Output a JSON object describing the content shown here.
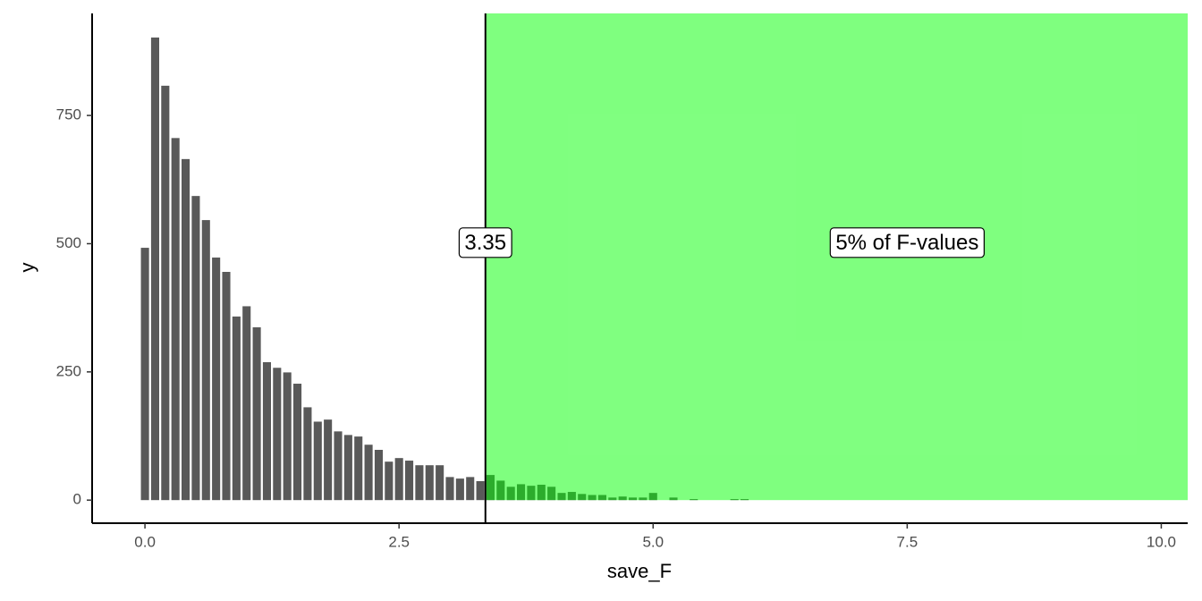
{
  "chart_data": {
    "type": "bar",
    "x": [
      0.0,
      0.1,
      0.2,
      0.3,
      0.4,
      0.5,
      0.6,
      0.7,
      0.8,
      0.9,
      1.0,
      1.1,
      1.2,
      1.3,
      1.4,
      1.5,
      1.6,
      1.7,
      1.8,
      1.9,
      2.0,
      2.1,
      2.2,
      2.3,
      2.4,
      2.5,
      2.6,
      2.7,
      2.8,
      2.9,
      3.0,
      3.1,
      3.2,
      3.3,
      3.4,
      3.5,
      3.6,
      3.7,
      3.8,
      3.9,
      4.0,
      4.1,
      4.2,
      4.3,
      4.4,
      4.5,
      4.6,
      4.7,
      4.8,
      4.9,
      5.0,
      5.1,
      5.2,
      5.3,
      5.4,
      5.5,
      5.6,
      5.7,
      5.8,
      5.9
    ],
    "values": [
      492,
      902,
      808,
      706,
      665,
      593,
      546,
      473,
      445,
      358,
      378,
      337,
      269,
      258,
      249,
      227,
      181,
      153,
      157,
      134,
      127,
      124,
      108,
      98,
      75,
      82,
      77,
      68,
      68,
      68,
      45,
      42,
      45,
      37,
      49,
      38,
      26,
      31,
      28,
      30,
      26,
      14,
      16,
      12,
      10,
      10,
      5,
      7,
      5,
      5,
      14,
      0,
      5,
      0,
      2,
      0,
      0,
      0,
      2,
      2
    ],
    "color": "#595959",
    "x_label": "save_F",
    "y_label": "y",
    "xlim": [
      -0.52,
      10.26
    ],
    "ylim": [
      -45,
      949
    ],
    "xticks": [
      {
        "value": 0,
        "label": "0.0"
      },
      2.5,
      {
        "value": 5,
        "label": "5.0"
      },
      7.5,
      {
        "value": 10,
        "label": "10.0"
      }
    ],
    "yticks": [
      0,
      250,
      500,
      750
    ],
    "grid": false,
    "vline": 3.35,
    "shade": {
      "xmin": 3.35,
      "xmax": 10.26,
      "ymin": 0,
      "ymax": 949,
      "color": "#00ff00",
      "opacity": 0.5
    },
    "annotations": [
      {
        "text": "3.35",
        "x": 3.35,
        "y": 500
      },
      {
        "text": "5% of F-values",
        "x": 7.5,
        "y": 500
      }
    ]
  }
}
